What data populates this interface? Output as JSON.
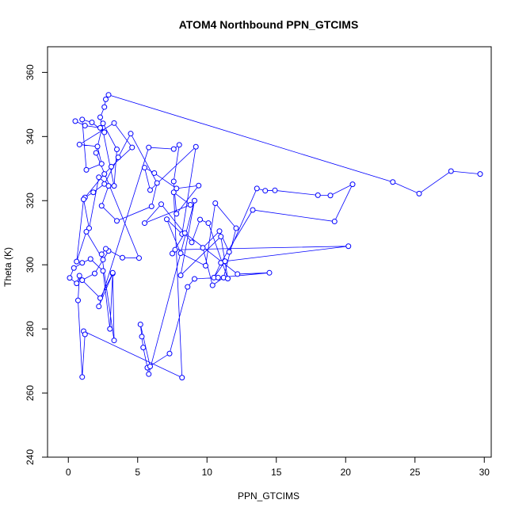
{
  "chart_data": {
    "type": "line",
    "title": "ATOM4 Northbound PPN_GTCIMS",
    "xlabel": "PPN_GTCIMS",
    "ylabel": "Theta (K)",
    "xlim": [
      -1.5,
      30.5
    ],
    "ylim": [
      240,
      368
    ],
    "x_ticks": [
      0,
      5,
      10,
      15,
      20,
      25,
      30
    ],
    "y_ticks": [
      240,
      260,
      280,
      300,
      320,
      340,
      360
    ],
    "grid": false,
    "legend": "none",
    "colors": {
      "series": "#0000ff",
      "axis": "#000000",
      "background": "#ffffff"
    },
    "series": [
      {
        "marker": "open-circle",
        "x": [
          0.5,
          1.2,
          2.3,
          2.6,
          1.7,
          1.0,
          1.3,
          2.4,
          2.1,
          0.8,
          3.3,
          4.6,
          3.1,
          2.6,
          1.2,
          1.8,
          2.6,
          3.6,
          4.5,
          6.4,
          6.0,
          3.5,
          2.4,
          2.9,
          2.2,
          1.5,
          1.1,
          0.6,
          1.3,
          2.5,
          2.9,
          1.9,
          1.0,
          2.3,
          3.2,
          2.2,
          5.8,
          7.6,
          8.0,
          7.6,
          7.8,
          9.4,
          7.8,
          6.2,
          5.5,
          5.9,
          9.2,
          8.2,
          7.1,
          8.1,
          9.9,
          10.6,
          12.1,
          11.2,
          10.4,
          9.7,
          10.9,
          11.6,
          13.6,
          14.2,
          14.9,
          18.0,
          18.9,
          20.5,
          19.2,
          13.3,
          11.0,
          10.5,
          11.3,
          20.2,
          7.7,
          7.5,
          8.4,
          12.2,
          14.5,
          10.8,
          9.1,
          8.6,
          7.3,
          5.7,
          5.9,
          5.2,
          5.3,
          5.4,
          5.8,
          9.1,
          8.1,
          11.0,
          11.5,
          10.1,
          9.5,
          8.9,
          6.7,
          5.5,
          8.8,
          7.6,
          8.2,
          1.1,
          1.2,
          1.0,
          0.7,
          0.8,
          0.6,
          0.1,
          0.4,
          1.0,
          1.6,
          2.5,
          3.0,
          3.2,
          3.3,
          2.4,
          2.7,
          3.9,
          5.1,
          2.0,
          2.5,
          3.5,
          3.3,
          2.3,
          2.6,
          2.7,
          2.9,
          23.4,
          25.3,
          27.6,
          29.7
        ],
        "y": [
          344.8,
          343.4,
          342.7,
          341.3,
          344.4,
          345.3,
          329.6,
          331.5,
          336.9,
          337.5,
          344.2,
          336.6,
          330.6,
          328.3,
          321.0,
          322.6,
          325.2,
          333.5,
          340.9,
          325.5,
          318.2,
          313.7,
          318.4,
          324.6,
          327.3,
          311.4,
          320.4,
          301.0,
          310.3,
          301.6,
          304.3,
          297.3,
          295.2,
          289.6,
          297.3,
          287.0,
          336.6,
          336.1,
          337.4,
          326.0,
          315.9,
          324.7,
          323.8,
          328.6,
          330.3,
          323.3,
          336.8,
          309.6,
          314.2,
          303.6,
          299.7,
          319.2,
          311.4,
          296.0,
          293.6,
          305.3,
          310.5,
          304.0,
          323.8,
          323.1,
          323.2,
          321.7,
          321.6,
          325.1,
          313.5,
          317.1,
          300.6,
          296.0,
          301.1,
          305.8,
          304.7,
          303.5,
          309.9,
          297.1,
          297.5,
          296.0,
          295.6,
          293.1,
          272.3,
          267.9,
          268.3,
          281.4,
          277.6,
          274.2,
          265.9,
          320.0,
          296.7,
          308.8,
          295.7,
          313.0,
          314.1,
          307.0,
          318.9,
          313.0,
          318.7,
          322.6,
          264.8,
          279.3,
          278.3,
          265.0,
          288.9,
          296.6,
          294.2,
          295.9,
          299.0,
          300.6,
          301.8,
          298.1,
          280.0,
          297.5,
          276.4,
          303.3,
          305.0,
          302.2,
          302.1,
          334.9,
          344.1,
          336.0,
          324.6,
          346.0,
          349.2,
          351.6,
          353.0,
          325.8,
          322.2,
          329.2,
          328.3
        ]
      }
    ]
  }
}
